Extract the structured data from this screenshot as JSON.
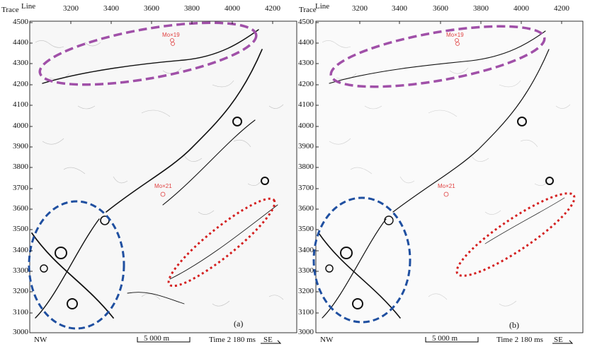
{
  "axes": {
    "trace_label": "Trace",
    "line_label": "Line",
    "y_ticks": [
      "4500",
      "4400",
      "4300",
      "4200",
      "4100",
      "4000",
      "3900",
      "3800",
      "3700",
      "3600",
      "3500",
      "3400",
      "3300",
      "3200",
      "3100",
      "3000"
    ],
    "x_ticks": [
      "3200",
      "3400",
      "3600",
      "3800",
      "4000",
      "4200"
    ]
  },
  "panels": [
    {
      "label": "(a)",
      "wells": [
        "Mo×19",
        "Mo×21"
      ],
      "nw": "NW",
      "se": "SE",
      "scale": "5 000 m",
      "time": "Time 2 180 ms"
    },
    {
      "label": "(b)",
      "wells": [
        "Mo×19",
        "Mo×21"
      ],
      "nw": "NW",
      "se": "SE",
      "scale": "5 000 m",
      "time": "Time 2 180 ms"
    }
  ],
  "annotation_colors": {
    "purple_ellipse": "#a050a8",
    "blue_ellipse": "#1f4fa0",
    "red_ellipse": "#d42020",
    "well_marker": "#e04040"
  }
}
